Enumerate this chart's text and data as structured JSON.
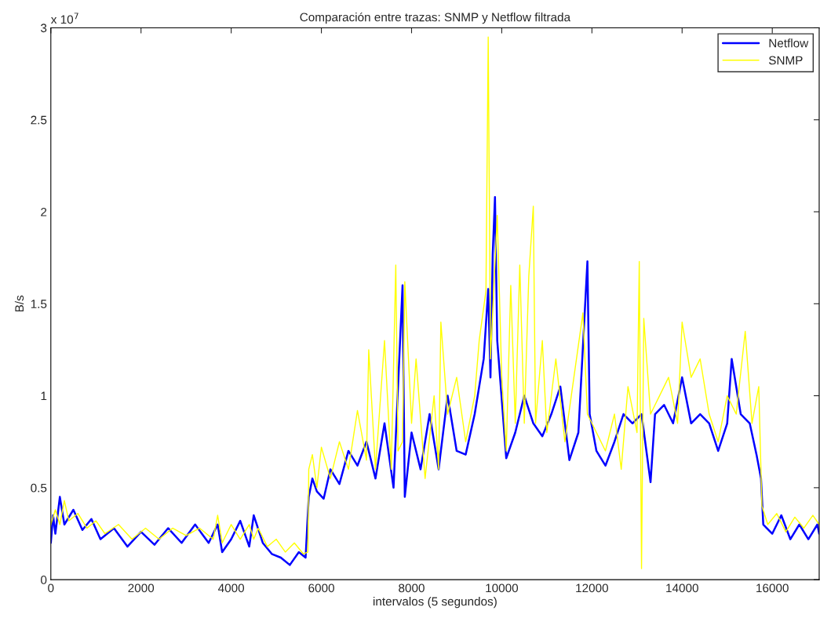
{
  "chart_data": {
    "type": "line",
    "title": "Comparación entre trazas: SNMP y Netflow filtrada",
    "xlabel": "intervalos (5 segundos)",
    "ylabel": "B/s",
    "annotations": [
      "x 10$^{7}$"
    ],
    "xlim": [
      0,
      17040
    ],
    "xticks": [
      0,
      2000,
      4000,
      6000,
      8000,
      10000,
      12000,
      14000,
      16000
    ],
    "ylim": [
      0,
      3
    ],
    "yticks": [
      0,
      0.5,
      1,
      1.5,
      2,
      2.5,
      3
    ],
    "grid": false,
    "legend": "top right",
    "line_style": "solid",
    "marker": "none",
    "series": [
      {
        "name": "Netflow",
        "color": "#0000ff",
        "x": [
          0,
          50,
          100,
          200,
          300,
          500,
          700,
          900,
          1100,
          1400,
          1700,
          2000,
          2300,
          2600,
          2900,
          3200,
          3500,
          3700,
          3800,
          4000,
          4200,
          4400,
          4500,
          4700,
          4900,
          5100,
          5300,
          5500,
          5650,
          5720,
          5800,
          5900,
          6050,
          6200,
          6400,
          6600,
          6800,
          7000,
          7200,
          7400,
          7600,
          7800,
          7850,
          8000,
          8200,
          8400,
          8600,
          8800,
          9000,
          9200,
          9400,
          9600,
          9700,
          9750,
          9800,
          9850,
          9900,
          10100,
          10300,
          10500,
          10700,
          10900,
          11100,
          11300,
          11500,
          11700,
          11900,
          11950,
          12100,
          12300,
          12500,
          12700,
          12900,
          13100,
          13300,
          13400,
          13600,
          13800,
          14000,
          14200,
          14400,
          14600,
          14800,
          15000,
          15100,
          15300,
          15500,
          15650,
          15750,
          15800,
          16000,
          16200,
          16400,
          16600,
          16800,
          17000,
          17040
        ],
        "values": [
          0.2,
          0.35,
          0.25,
          0.45,
          0.3,
          0.38,
          0.27,
          0.33,
          0.22,
          0.28,
          0.18,
          0.26,
          0.19,
          0.28,
          0.2,
          0.3,
          0.2,
          0.3,
          0.15,
          0.22,
          0.32,
          0.18,
          0.35,
          0.2,
          0.14,
          0.12,
          0.08,
          0.15,
          0.12,
          0.45,
          0.55,
          0.48,
          0.44,
          0.6,
          0.52,
          0.7,
          0.62,
          0.75,
          0.55,
          0.85,
          0.5,
          1.6,
          0.45,
          0.8,
          0.6,
          0.9,
          0.6,
          1.0,
          0.7,
          0.68,
          0.9,
          1.2,
          1.58,
          1.1,
          1.77,
          2.08,
          1.3,
          0.66,
          0.8,
          1.0,
          0.85,
          0.78,
          0.9,
          1.05,
          0.65,
          0.8,
          1.73,
          0.9,
          0.7,
          0.62,
          0.75,
          0.9,
          0.85,
          0.9,
          0.53,
          0.9,
          0.95,
          0.85,
          1.1,
          0.85,
          0.9,
          0.85,
          0.7,
          0.85,
          1.2,
          0.9,
          0.85,
          0.68,
          0.55,
          0.3,
          0.25,
          0.35,
          0.22,
          0.3,
          0.22,
          0.3,
          0.25
        ]
      },
      {
        "name": "SNMP",
        "color": "#ffff00",
        "x": [
          0,
          100,
          200,
          300,
          400,
          600,
          800,
          1000,
          1200,
          1500,
          1800,
          2100,
          2400,
          2700,
          3000,
          3300,
          3600,
          3700,
          3800,
          4000,
          4200,
          4400,
          4500,
          4600,
          4800,
          5000,
          5200,
          5400,
          5600,
          5700,
          5720,
          5800,
          5900,
          6000,
          6200,
          6400,
          6600,
          6800,
          7000,
          7050,
          7200,
          7400,
          7550,
          7650,
          7700,
          7800,
          7850,
          8000,
          8100,
          8300,
          8500,
          8600,
          8650,
          8800,
          9000,
          9200,
          9400,
          9500,
          9650,
          9700,
          9750,
          9900,
          10000,
          10100,
          10200,
          10300,
          10400,
          10500,
          10600,
          10700,
          10750,
          10900,
          11000,
          11200,
          11400,
          11600,
          11800,
          11900,
          12100,
          12300,
          12500,
          12650,
          12800,
          13000,
          13050,
          13100,
          13150,
          13300,
          13500,
          13700,
          13900,
          14000,
          14200,
          14400,
          14600,
          14800,
          15000,
          15200,
          15400,
          15550,
          15700,
          15770,
          15900,
          16100,
          16300,
          16500,
          16700,
          16900,
          17040
        ],
        "values": [
          0.3,
          0.38,
          0.3,
          0.43,
          0.32,
          0.36,
          0.28,
          0.32,
          0.25,
          0.3,
          0.22,
          0.28,
          0.22,
          0.28,
          0.24,
          0.28,
          0.22,
          0.35,
          0.2,
          0.3,
          0.22,
          0.3,
          0.22,
          0.28,
          0.18,
          0.22,
          0.15,
          0.2,
          0.14,
          0.15,
          0.6,
          0.68,
          0.5,
          0.72,
          0.55,
          0.75,
          0.6,
          0.92,
          0.65,
          1.25,
          0.6,
          1.3,
          0.6,
          1.71,
          0.7,
          0.75,
          1.62,
          0.85,
          1.2,
          0.55,
          1.0,
          0.6,
          1.4,
          0.9,
          1.1,
          0.75,
          1.0,
          1.3,
          1.57,
          2.95,
          1.2,
          1.98,
          1.1,
          0.7,
          1.6,
          0.85,
          1.71,
          0.85,
          1.65,
          2.03,
          0.85,
          1.3,
          0.8,
          1.2,
          0.75,
          1.1,
          1.45,
          0.9,
          0.8,
          0.7,
          0.9,
          0.6,
          1.05,
          0.8,
          1.73,
          0.06,
          1.42,
          0.9,
          1.0,
          1.1,
          0.85,
          1.4,
          1.1,
          1.2,
          0.9,
          0.75,
          1.0,
          0.9,
          1.35,
          0.85,
          1.05,
          0.4,
          0.3,
          0.36,
          0.26,
          0.34,
          0.28,
          0.35,
          0.3
        ]
      }
    ]
  }
}
